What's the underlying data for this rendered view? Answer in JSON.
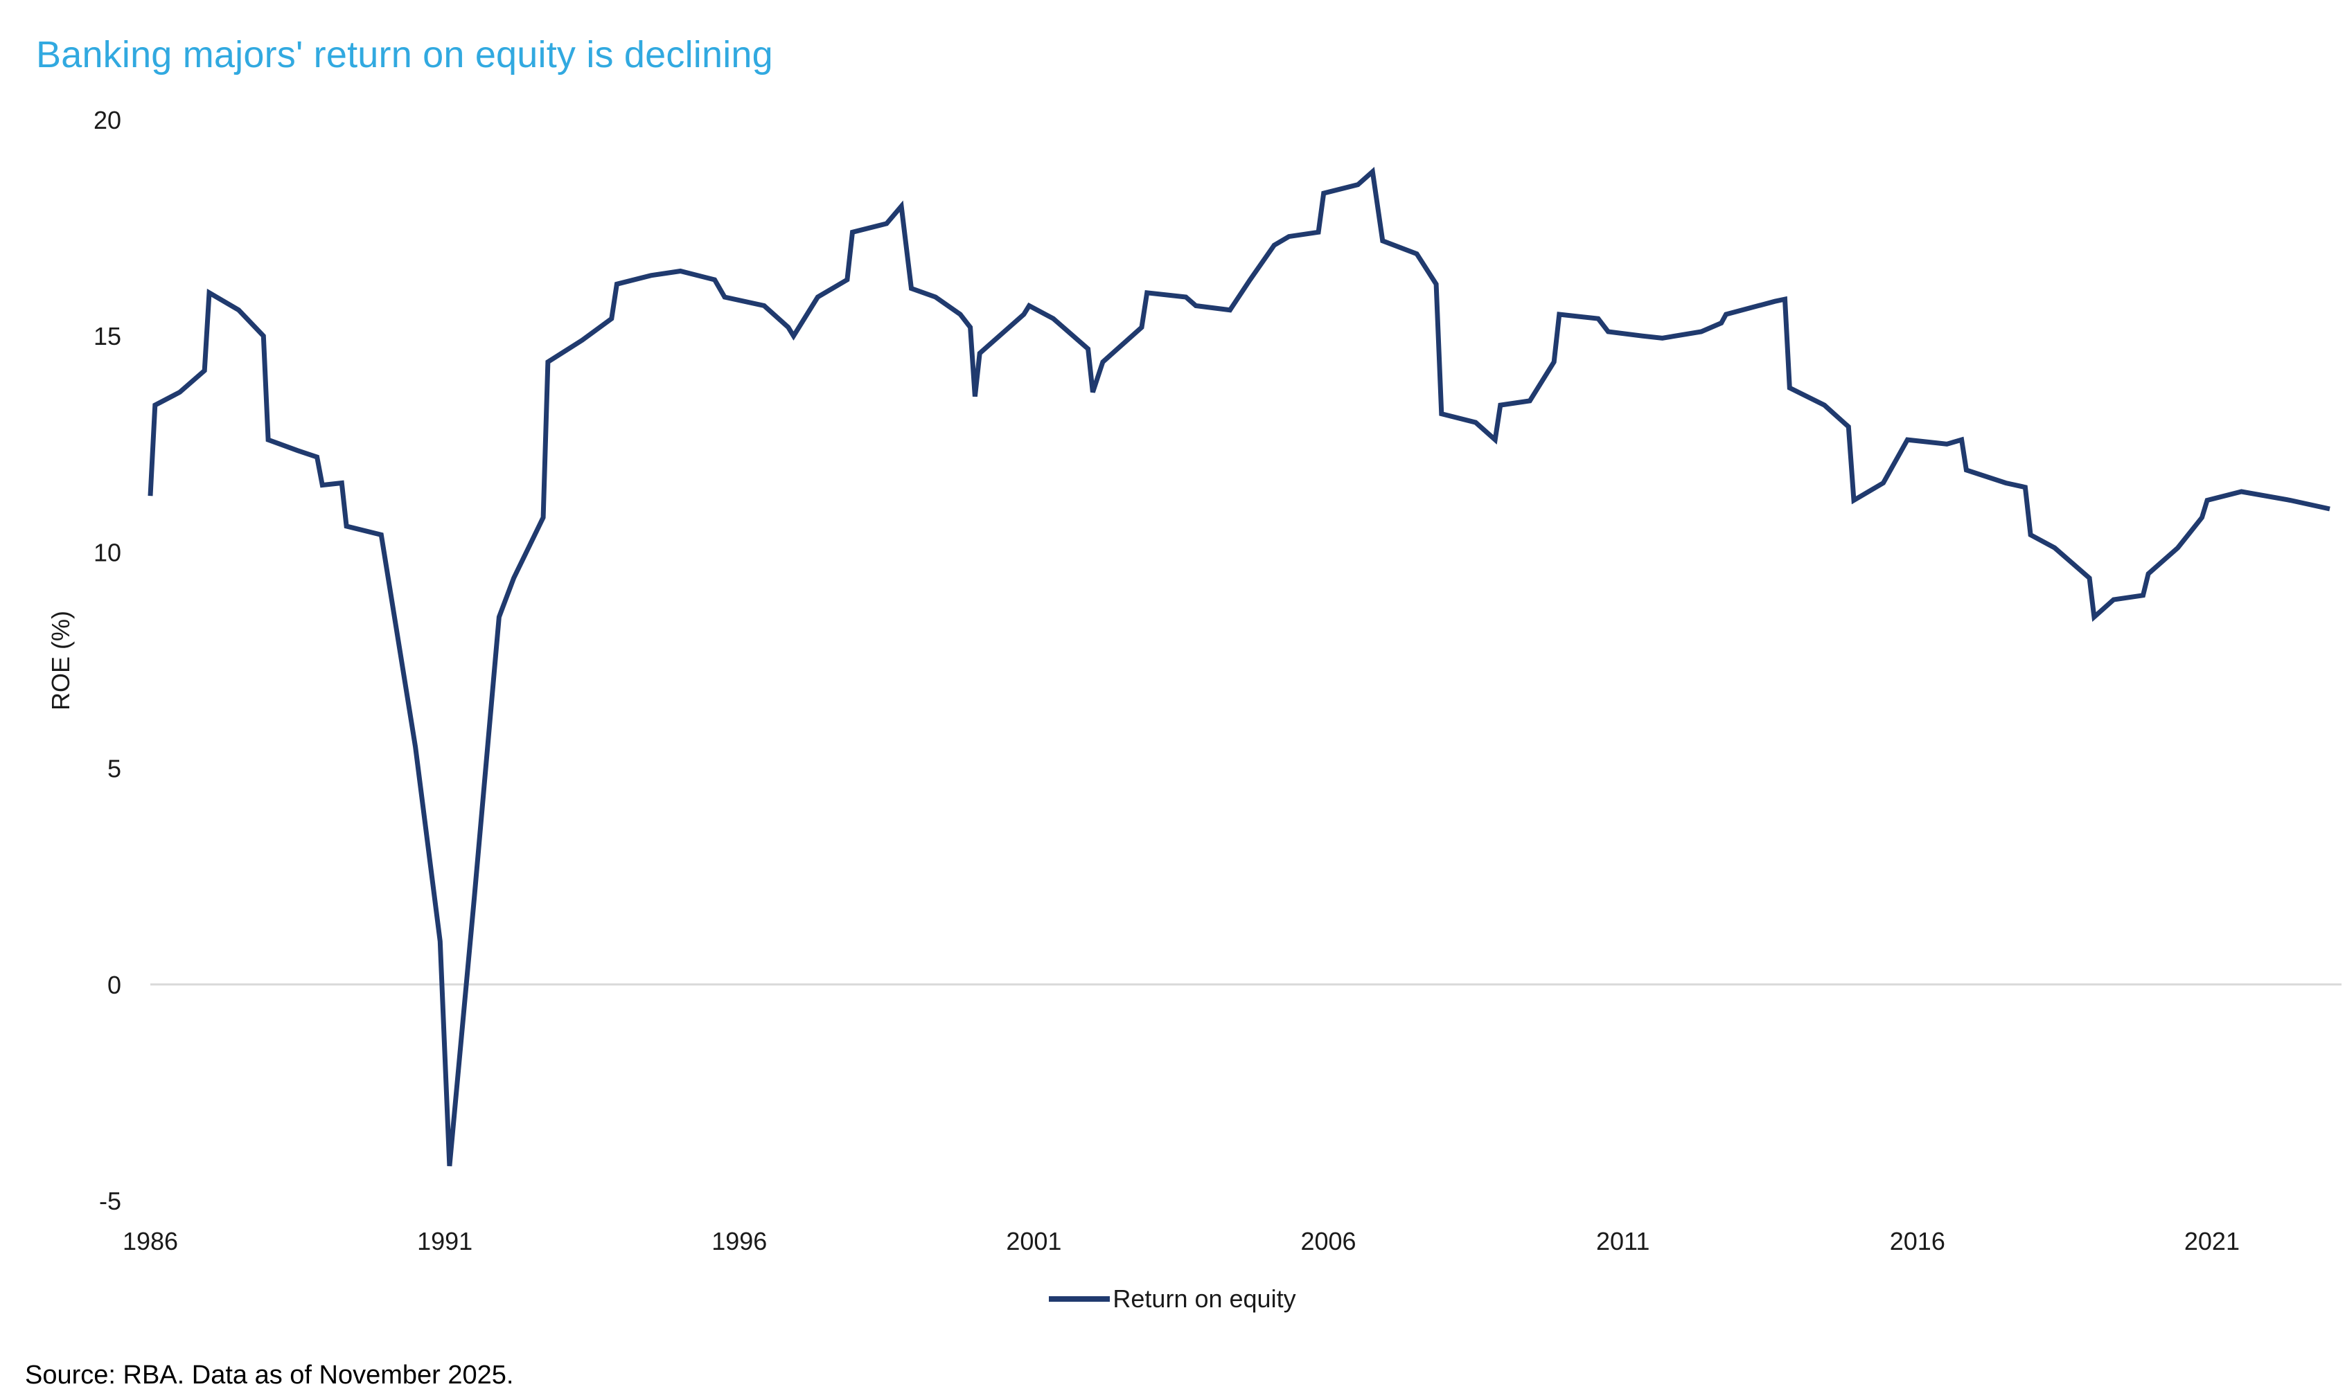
{
  "chart_data": {
    "type": "line",
    "title": "Banking majors' return on equity is declining",
    "ylabel": "ROE (%)",
    "xlabel": "",
    "legend_position": "bottom-center",
    "grid": "zero-line-only",
    "xlim": [
      1986,
      2023.2
    ],
    "ylim": [
      -5,
      20
    ],
    "y_ticks": [
      20,
      15,
      10,
      5,
      0,
      -5
    ],
    "x_ticks": [
      1986,
      1991,
      1996,
      2001,
      2006,
      2011,
      2016,
      2021
    ],
    "colors": {
      "title": "#31A9E0",
      "line": "#203A6E",
      "zero_line": "#D9D9D9",
      "tick_text": "#1a1a1a"
    },
    "source": "Source: RBA. Data as of November 2025.",
    "series": [
      {
        "name": "Return on equity",
        "points": [
          [
            1986.0,
            11.3
          ],
          [
            1986.08,
            13.4
          ],
          [
            1986.5,
            13.7
          ],
          [
            1986.92,
            14.2
          ],
          [
            1987.0,
            16.0
          ],
          [
            1987.5,
            15.6
          ],
          [
            1987.92,
            15.0
          ],
          [
            1988.0,
            12.6
          ],
          [
            1988.5,
            12.35
          ],
          [
            1988.83,
            12.2
          ],
          [
            1988.92,
            11.55
          ],
          [
            1989.25,
            11.6
          ],
          [
            1989.33,
            10.6
          ],
          [
            1989.92,
            10.4
          ],
          [
            1990.5,
            5.5
          ],
          [
            1990.92,
            1.0
          ],
          [
            1991.08,
            -4.2
          ],
          [
            1991.5,
            2.0
          ],
          [
            1991.92,
            8.5
          ],
          [
            1992.17,
            9.4
          ],
          [
            1992.67,
            10.8
          ],
          [
            1992.75,
            14.4
          ],
          [
            1993.33,
            14.9
          ],
          [
            1993.83,
            15.4
          ],
          [
            1993.92,
            16.2
          ],
          [
            1994.5,
            16.4
          ],
          [
            1995.0,
            16.5
          ],
          [
            1995.58,
            16.3
          ],
          [
            1995.75,
            15.9
          ],
          [
            1996.42,
            15.7
          ],
          [
            1996.83,
            15.2
          ],
          [
            1996.92,
            15.0
          ],
          [
            1997.33,
            15.9
          ],
          [
            1997.83,
            16.3
          ],
          [
            1997.92,
            17.4
          ],
          [
            1998.5,
            17.6
          ],
          [
            1998.75,
            18.0
          ],
          [
            1998.92,
            16.1
          ],
          [
            1999.33,
            15.9
          ],
          [
            1999.75,
            15.5
          ],
          [
            1999.92,
            15.2
          ],
          [
            2000.0,
            13.6
          ],
          [
            2000.08,
            14.6
          ],
          [
            2000.83,
            15.5
          ],
          [
            2000.92,
            15.7
          ],
          [
            2001.33,
            15.4
          ],
          [
            2001.92,
            14.7
          ],
          [
            2002.0,
            13.7
          ],
          [
            2002.17,
            14.4
          ],
          [
            2002.83,
            15.2
          ],
          [
            2002.92,
            16.0
          ],
          [
            2003.58,
            15.9
          ],
          [
            2003.75,
            15.7
          ],
          [
            2004.33,
            15.6
          ],
          [
            2004.67,
            16.3
          ],
          [
            2005.08,
            17.1
          ],
          [
            2005.33,
            17.3
          ],
          [
            2005.83,
            17.4
          ],
          [
            2005.92,
            18.3
          ],
          [
            2006.5,
            18.5
          ],
          [
            2006.75,
            18.8
          ],
          [
            2006.92,
            17.2
          ],
          [
            2007.5,
            16.9
          ],
          [
            2007.83,
            16.2
          ],
          [
            2007.92,
            13.2
          ],
          [
            2008.5,
            13.0
          ],
          [
            2008.83,
            12.6
          ],
          [
            2008.92,
            13.4
          ],
          [
            2009.42,
            13.5
          ],
          [
            2009.83,
            14.4
          ],
          [
            2009.92,
            15.5
          ],
          [
            2010.58,
            15.4
          ],
          [
            2010.75,
            15.1
          ],
          [
            2011.33,
            15.0
          ],
          [
            2011.67,
            14.95
          ],
          [
            2012.33,
            15.1
          ],
          [
            2012.67,
            15.3
          ],
          [
            2012.75,
            15.5
          ],
          [
            2013.58,
            15.8
          ],
          [
            2013.75,
            15.85
          ],
          [
            2013.83,
            13.8
          ],
          [
            2014.42,
            13.4
          ],
          [
            2014.83,
            12.9
          ],
          [
            2014.92,
            11.2
          ],
          [
            2015.42,
            11.6
          ],
          [
            2015.83,
            12.6
          ],
          [
            2016.5,
            12.5
          ],
          [
            2016.75,
            12.6
          ],
          [
            2016.83,
            11.9
          ],
          [
            2017.5,
            11.6
          ],
          [
            2017.83,
            11.5
          ],
          [
            2017.92,
            10.4
          ],
          [
            2018.33,
            10.1
          ],
          [
            2018.92,
            9.4
          ],
          [
            2019.0,
            8.5
          ],
          [
            2019.33,
            8.9
          ],
          [
            2019.83,
            9.0
          ],
          [
            2019.92,
            9.5
          ],
          [
            2020.42,
            10.1
          ],
          [
            2020.83,
            10.8
          ],
          [
            2020.92,
            11.2
          ],
          [
            2021.5,
            11.4
          ],
          [
            2022.33,
            11.2
          ],
          [
            2023.0,
            11.0
          ]
        ]
      }
    ]
  }
}
